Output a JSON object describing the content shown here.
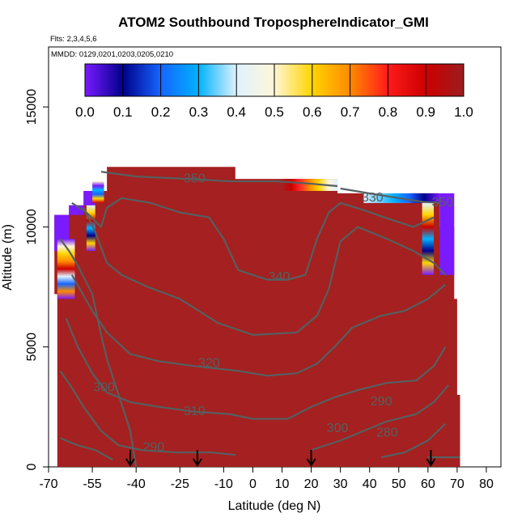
{
  "chart_data": {
    "type": "heatmap",
    "title": "ATOM2 Southbound TroposphereIndicator_GMI",
    "subtitle_flights": "Flts: 2,3,4,5,6",
    "subtitle_dates": "MMDD: 0129,0201,0203,0205,0210",
    "xlabel": "Latitude (deg N)",
    "ylabel": "Altitude (m)",
    "xlim": [
      -70,
      85
    ],
    "ylim": [
      0,
      17500
    ],
    "x_ticks": [
      -70,
      -55,
      -40,
      -25,
      -10,
      0,
      10,
      20,
      30,
      40,
      50,
      60,
      70,
      80
    ],
    "y_ticks": [
      0,
      5000,
      10000,
      15000
    ],
    "colorbar": {
      "min": 0.0,
      "max": 1.0,
      "tick_labels": [
        "0.0",
        "0.1",
        "0.2",
        "0.3",
        "0.4",
        "0.5",
        "0.6",
        "0.7",
        "0.8",
        "0.9",
        "1.0"
      ],
      "colors": [
        "#7a1aff",
        "#00008b",
        "#1565ff",
        "#00b2ff",
        "#dff2ff",
        "#fff6d6",
        "#ffd400",
        "#ff8a00",
        "#ff1a1a",
        "#cc0000",
        "#9b1d20"
      ]
    },
    "field_color_default": "#a52020",
    "isentrope_labels": [
      "350",
      "330",
      "350",
      "340",
      "320",
      "310",
      "300",
      "290",
      "300",
      "290",
      "280"
    ],
    "flight_arrow_latitudes": [
      -42,
      -19,
      20,
      61
    ]
  }
}
